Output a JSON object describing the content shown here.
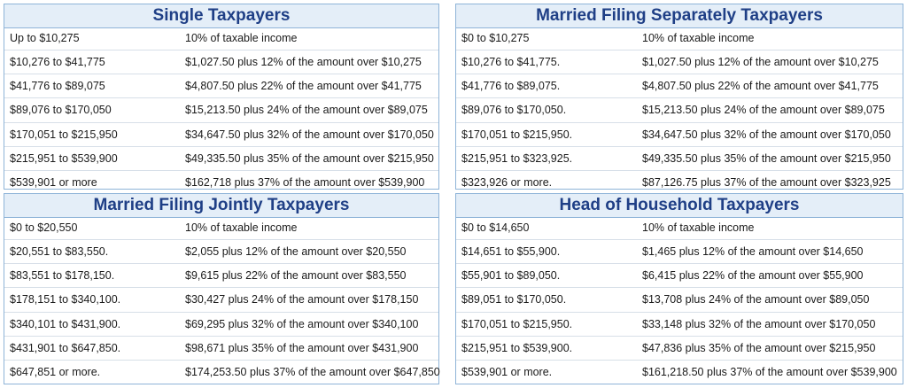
{
  "tables": [
    {
      "title": "Single Taxpayers",
      "rows": [
        {
          "range": "Up to $10,275",
          "rate": "10% of taxable income"
        },
        {
          "range": "$10,276 to $41,775",
          "rate": "$1,027.50 plus 12% of the amount over $10,275"
        },
        {
          "range": "$41,776 to $89,075",
          "rate": "$4,807.50 plus 22% of the amount over $41,775"
        },
        {
          "range": "$89,076 to $170,050",
          "rate": "$15,213.50 plus 24% of the amount over $89,075"
        },
        {
          "range": "$170,051 to $215,950",
          "rate": "$34,647.50 plus 32% of the amount over $170,050"
        },
        {
          "range": "$215,951 to $539,900",
          "rate": "$49,335.50 plus 35% of the amount over $215,950"
        },
        {
          "range": "$539,901 or more",
          "rate": "$162,718 plus 37% of the amount over $539,900"
        }
      ]
    },
    {
      "title": "Married Filing Separately Taxpayers",
      "rows": [
        {
          "range": "$0 to $10,275",
          "rate": "10% of taxable income"
        },
        {
          "range": "$10,276 to $41,775.",
          "rate": "$1,027.50 plus 12% of the amount over $10,275"
        },
        {
          "range": "$41,776 to $89,075.",
          "rate": "$4,807.50 plus 22% of the amount over $41,775"
        },
        {
          "range": "$89,076 to $170,050.",
          "rate": "$15,213.50 plus 24% of the amount over $89,075"
        },
        {
          "range": "$170,051 to $215,950.",
          "rate": "$34,647.50 plus 32% of the amount over $170,050"
        },
        {
          "range": "$215,951 to $323,925.",
          "rate": "$49,335.50 plus 35% of the amount over $215,950"
        },
        {
          "range": "$323,926 or more.",
          "rate": "$87,126.75 plus 37% of the amount over $323,925"
        }
      ]
    },
    {
      "title": "Married Filing Jointly Taxpayers",
      "rows": [
        {
          "range": "$0 to $20,550",
          "rate": "10% of taxable income"
        },
        {
          "range": "$20,551 to $83,550.",
          "rate": "$2,055 plus 12% of the amount over $20,550"
        },
        {
          "range": "$83,551 to $178,150.",
          "rate": "$9,615 plus 22% of the amount over $83,550"
        },
        {
          "range": "$178,151 to $340,100.",
          "rate": "$30,427 plus 24% of the amount over $178,150"
        },
        {
          "range": "$340,101 to $431,900.",
          "rate": "$69,295 plus 32% of the amount over $340,100"
        },
        {
          "range": "$431,901 to $647,850.",
          "rate": "$98,671 plus 35% of the amount over $431,900"
        },
        {
          "range": "$647,851 or more.",
          "rate": "$174,253.50 plus 37% of the amount over $647,850"
        }
      ]
    },
    {
      "title": "Head of Household Taxpayers",
      "rows": [
        {
          "range": "$0 to $14,650",
          "rate": "10% of taxable income"
        },
        {
          "range": "$14,651 to $55,900.",
          "rate": "$1,465 plus 12% of the amount over $14,650"
        },
        {
          "range": "$55,901 to $89,050.",
          "rate": "$6,415 plus 22% of the amount over $55,900"
        },
        {
          "range": "$89,051 to $170,050.",
          "rate": "$13,708 plus 24% of the amount over $89,050"
        },
        {
          "range": "$170,051 to $215,950.",
          "rate": "$33,148 plus 32% of the amount over $170,050"
        },
        {
          "range": "$215,951 to $539,900.",
          "rate": "$47,836 plus 35% of the amount over $215,950"
        },
        {
          "range": "$539,901 or more.",
          "rate": "$161,218.50 plus 37% of the amount over $539,900"
        }
      ]
    }
  ]
}
